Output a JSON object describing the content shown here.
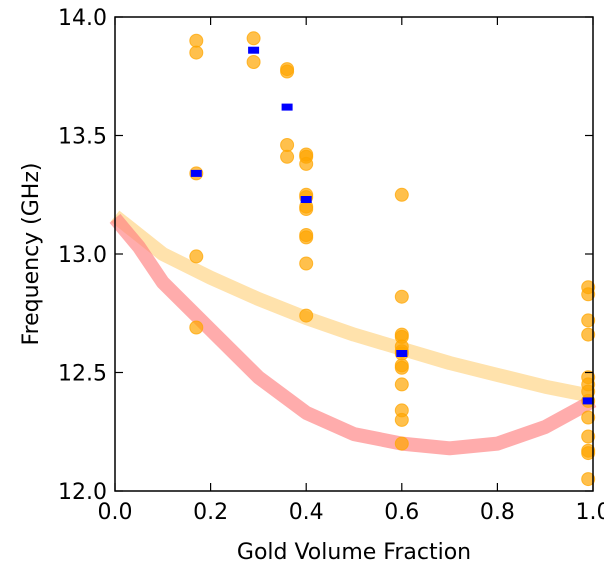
{
  "chart_data": {
    "type": "scatter",
    "title": "",
    "xlabel": "Gold Volume Fraction",
    "ylabel": "Frequency (GHz)",
    "xlim": [
      0.0,
      1.0
    ],
    "ylim": [
      12.0,
      14.0
    ],
    "x_ticks": [
      "0.0",
      "0.2",
      "0.4",
      "0.6",
      "0.8",
      "1.0"
    ],
    "y_ticks": [
      "12.0",
      "12.5",
      "13.0",
      "13.5",
      "14.0"
    ],
    "grid": false,
    "legend": "none",
    "series": [
      {
        "kind": "scatter-circles",
        "color": "#ffa500",
        "points": [
          [
            0.17,
            13.9
          ],
          [
            0.17,
            13.85
          ],
          [
            0.17,
            13.34
          ],
          [
            0.17,
            12.99
          ],
          [
            0.17,
            12.69
          ],
          [
            0.29,
            13.91
          ],
          [
            0.29,
            13.81
          ],
          [
            0.36,
            13.78
          ],
          [
            0.36,
            13.77
          ],
          [
            0.36,
            13.46
          ],
          [
            0.36,
            13.41
          ],
          [
            0.4,
            13.42
          ],
          [
            0.4,
            13.41
          ],
          [
            0.4,
            13.38
          ],
          [
            0.4,
            13.25
          ],
          [
            0.4,
            13.24
          ],
          [
            0.4,
            13.2
          ],
          [
            0.4,
            13.19
          ],
          [
            0.4,
            13.08
          ],
          [
            0.4,
            13.07
          ],
          [
            0.4,
            12.96
          ],
          [
            0.4,
            12.74
          ],
          [
            0.6,
            13.25
          ],
          [
            0.6,
            12.82
          ],
          [
            0.6,
            12.66
          ],
          [
            0.6,
            12.65
          ],
          [
            0.6,
            12.61
          ],
          [
            0.6,
            12.59
          ],
          [
            0.6,
            12.58
          ],
          [
            0.6,
            12.53
          ],
          [
            0.6,
            12.52
          ],
          [
            0.6,
            12.45
          ],
          [
            0.6,
            12.34
          ],
          [
            0.6,
            12.3
          ],
          [
            0.6,
            12.2
          ],
          [
            0.99,
            12.86
          ],
          [
            0.99,
            12.83
          ],
          [
            0.99,
            12.72
          ],
          [
            0.99,
            12.66
          ],
          [
            0.99,
            12.48
          ],
          [
            0.99,
            12.45
          ],
          [
            0.99,
            12.42
          ],
          [
            0.99,
            12.38
          ],
          [
            0.99,
            12.31
          ],
          [
            0.99,
            12.23
          ],
          [
            0.99,
            12.17
          ],
          [
            0.99,
            12.16
          ],
          [
            0.99,
            12.05
          ]
        ]
      },
      {
        "kind": "scatter-squares",
        "color": "#0000ff",
        "points": [
          [
            0.17,
            13.34
          ],
          [
            0.29,
            13.86
          ],
          [
            0.36,
            13.62
          ],
          [
            0.4,
            13.23
          ],
          [
            0.6,
            12.58
          ],
          [
            0.99,
            12.38
          ]
        ]
      },
      {
        "kind": "band-line",
        "color": "#ffd27f",
        "points": [
          [
            0.0,
            13.16
          ],
          [
            0.1,
            13.0
          ],
          [
            0.2,
            12.9
          ],
          [
            0.3,
            12.81
          ],
          [
            0.4,
            12.73
          ],
          [
            0.5,
            12.66
          ],
          [
            0.6,
            12.6
          ],
          [
            0.7,
            12.54
          ],
          [
            0.8,
            12.49
          ],
          [
            0.9,
            12.44
          ],
          [
            1.0,
            12.4
          ]
        ]
      },
      {
        "kind": "band-line",
        "color": "#ff8080",
        "points": [
          [
            0.0,
            13.15
          ],
          [
            0.05,
            13.03
          ],
          [
            0.1,
            12.88
          ],
          [
            0.2,
            12.68
          ],
          [
            0.3,
            12.48
          ],
          [
            0.4,
            12.33
          ],
          [
            0.5,
            12.24
          ],
          [
            0.6,
            12.2
          ],
          [
            0.7,
            12.18
          ],
          [
            0.8,
            12.2
          ],
          [
            0.9,
            12.27
          ],
          [
            1.0,
            12.38
          ]
        ]
      }
    ]
  }
}
